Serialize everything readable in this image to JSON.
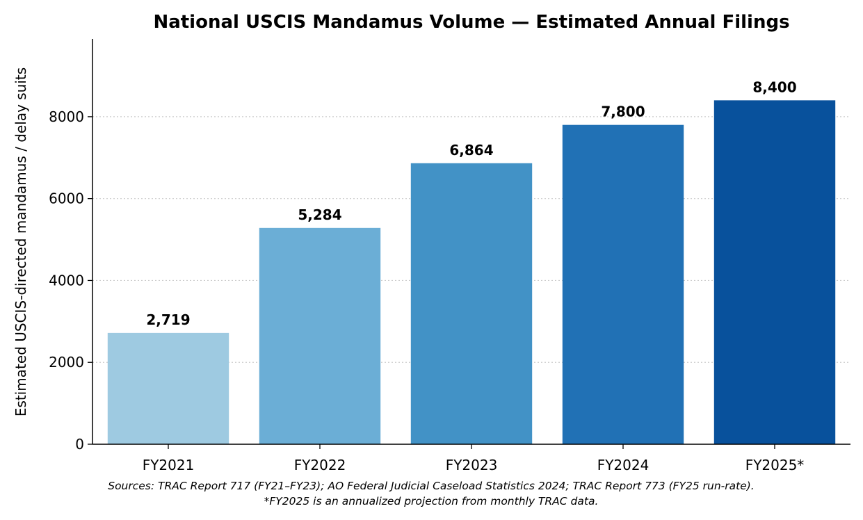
{
  "chart_data": {
    "type": "bar",
    "title": "National USCIS Mandamus Volume — Estimated Annual Filings",
    "xlabel": "",
    "ylabel": "Estimated USCIS-directed mandamus / delay suits",
    "categories": [
      "FY2021",
      "FY2022",
      "FY2023",
      "FY2024",
      "FY2025*"
    ],
    "values": [
      2719,
      5284,
      6864,
      7800,
      8400
    ],
    "value_labels": [
      "2,719",
      "5,284",
      "6,864",
      "7,800",
      "8,400"
    ],
    "colors": [
      "#9ecae1",
      "#6baed6",
      "#4292c6",
      "#2171b5",
      "#08519c"
    ],
    "ylim": [
      0,
      9900
    ],
    "yticks": [
      0,
      2000,
      4000,
      6000,
      8000
    ],
    "ytick_labels": [
      "0",
      "2000",
      "4000",
      "6000",
      "8000"
    ],
    "grid": "horizontal dotted",
    "notes": [
      "Sources: TRAC Report 717 (FY21–FY23); AO Federal Judicial Caseload Statistics 2024; TRAC Report 773 (FY25 run-rate).",
      "*FY2025 is an annualized projection from monthly TRAC data."
    ]
  }
}
